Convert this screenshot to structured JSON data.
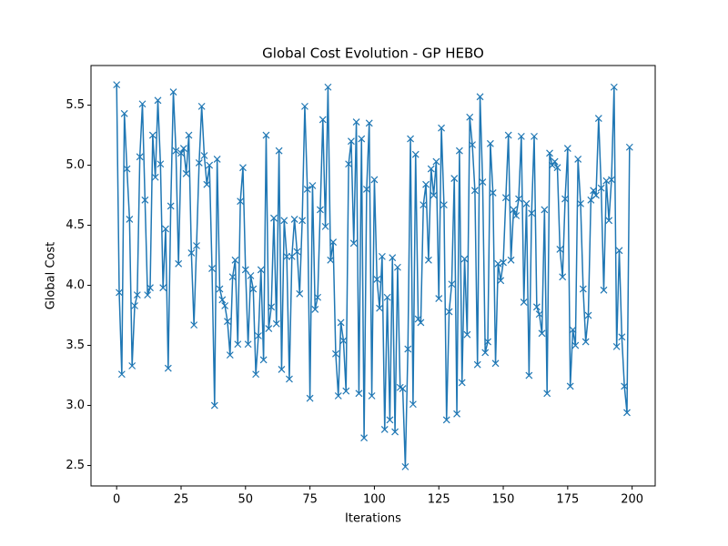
{
  "chart_data": {
    "type": "line",
    "title": "Global Cost Evolution - GP HEBO",
    "xlabel": "Iterations",
    "ylabel": "Global Cost",
    "x": [
      0,
      1,
      2,
      3,
      4,
      5,
      6,
      7,
      8,
      9,
      10,
      11,
      12,
      13,
      14,
      15,
      16,
      17,
      18,
      19,
      20,
      21,
      22,
      23,
      24,
      25,
      26,
      27,
      28,
      29,
      30,
      31,
      32,
      33,
      34,
      35,
      36,
      37,
      38,
      39,
      40,
      41,
      42,
      43,
      44,
      45,
      46,
      47,
      48,
      49,
      50,
      51,
      52,
      53,
      54,
      55,
      56,
      57,
      58,
      59,
      60,
      61,
      62,
      63,
      64,
      65,
      66,
      67,
      68,
      69,
      70,
      71,
      72,
      73,
      74,
      75,
      76,
      77,
      78,
      79,
      80,
      81,
      82,
      83,
      84,
      85,
      86,
      87,
      88,
      89,
      90,
      91,
      92,
      93,
      94,
      95,
      96,
      97,
      98,
      99,
      100,
      101,
      102,
      103,
      104,
      105,
      106,
      107,
      108,
      109,
      110,
      111,
      112,
      113,
      114,
      115,
      116,
      117,
      118,
      119,
      120,
      121,
      122,
      123,
      124,
      125,
      126,
      127,
      128,
      129,
      130,
      131,
      132,
      133,
      134,
      135,
      136,
      137,
      138,
      139,
      140,
      141,
      142,
      143,
      144,
      145,
      146,
      147,
      148,
      149,
      150,
      151,
      152,
      153,
      154,
      155,
      156,
      157,
      158,
      159,
      160,
      161,
      162,
      163,
      164,
      165,
      166,
      167,
      168,
      169,
      170,
      171,
      172,
      173,
      174,
      175,
      176,
      177,
      178,
      179,
      180,
      181,
      182,
      183,
      184,
      185,
      186,
      187,
      188,
      189,
      190,
      191,
      192,
      193,
      194,
      195,
      196,
      197,
      198,
      199
    ],
    "series": [
      {
        "color": "#1f77b4",
        "marker": "x",
        "values": [
          5.67,
          3.94,
          3.26,
          5.43,
          4.97,
          4.55,
          3.33,
          3.83,
          3.92,
          5.07,
          5.51,
          4.71,
          3.92,
          3.98,
          5.25,
          4.9,
          5.54,
          5.01,
          3.98,
          4.47,
          3.31,
          4.66,
          5.61,
          5.12,
          4.18,
          5.1,
          5.14,
          4.93,
          5.25,
          4.27,
          3.67,
          4.33,
          5.02,
          5.49,
          5.08,
          4.84,
          5.0,
          4.14,
          3.0,
          5.05,
          3.97,
          3.88,
          3.83,
          3.7,
          3.42,
          4.07,
          4.21,
          3.51,
          4.7,
          4.98,
          4.13,
          3.51,
          4.08,
          3.97,
          3.26,
          3.58,
          4.13,
          3.38,
          5.25,
          3.64,
          3.82,
          4.56,
          3.68,
          5.12,
          3.3,
          4.54,
          4.24,
          3.22,
          4.24,
          4.55,
          4.28,
          3.93,
          4.54,
          5.49,
          4.8,
          3.06,
          4.83,
          3.8,
          3.9,
          4.63,
          5.38,
          4.49,
          5.65,
          4.21,
          4.36,
          3.43,
          3.08,
          3.69,
          3.54,
          3.12,
          5.01,
          5.2,
          4.35,
          5.36,
          3.1,
          5.22,
          2.73,
          4.8,
          5.35,
          3.08,
          4.88,
          4.05,
          3.81,
          4.24,
          2.8,
          3.9,
          2.88,
          4.23,
          2.78,
          4.15,
          3.15,
          3.14,
          2.49,
          3.47,
          5.22,
          3.01,
          5.09,
          3.72,
          3.69,
          4.67,
          4.84,
          4.21,
          4.97,
          4.75,
          5.03,
          3.89,
          5.31,
          4.67,
          2.88,
          3.78,
          4.01,
          4.89,
          2.93,
          5.12,
          3.19,
          4.22,
          3.59,
          5.4,
          5.17,
          4.79,
          3.34,
          5.57,
          4.86,
          3.44,
          3.53,
          5.18,
          4.77,
          3.35,
          4.18,
          4.04,
          4.19,
          4.73,
          5.25,
          4.21,
          4.63,
          4.58,
          4.72,
          5.24,
          3.86,
          4.68,
          3.25,
          4.6,
          5.24,
          3.82,
          3.76,
          3.6,
          4.63,
          3.1,
          5.1,
          5.0,
          5.03,
          4.98,
          4.3,
          4.07,
          4.72,
          5.14,
          3.16,
          3.63,
          3.5,
          5.05,
          4.68,
          3.97,
          3.53,
          3.75,
          4.71,
          4.79,
          4.75,
          5.39,
          4.81,
          3.96,
          4.87,
          4.54,
          4.88,
          5.65,
          3.49,
          4.29,
          3.57,
          3.16,
          2.94,
          5.15
        ]
      }
    ],
    "xlim": [
      -9.95,
      208.95
    ],
    "ylim": [
      2.33,
      5.83
    ],
    "xticks": [
      0,
      25,
      50,
      75,
      100,
      125,
      150,
      175,
      200
    ],
    "yticks": [
      2.5,
      {
        "value": 3,
        "label": "3.0"
      },
      3.5,
      {
        "value": 4,
        "label": "4.0"
      },
      4.5,
      {
        "value": 5,
        "label": "5.0"
      },
      5.5
    ]
  }
}
